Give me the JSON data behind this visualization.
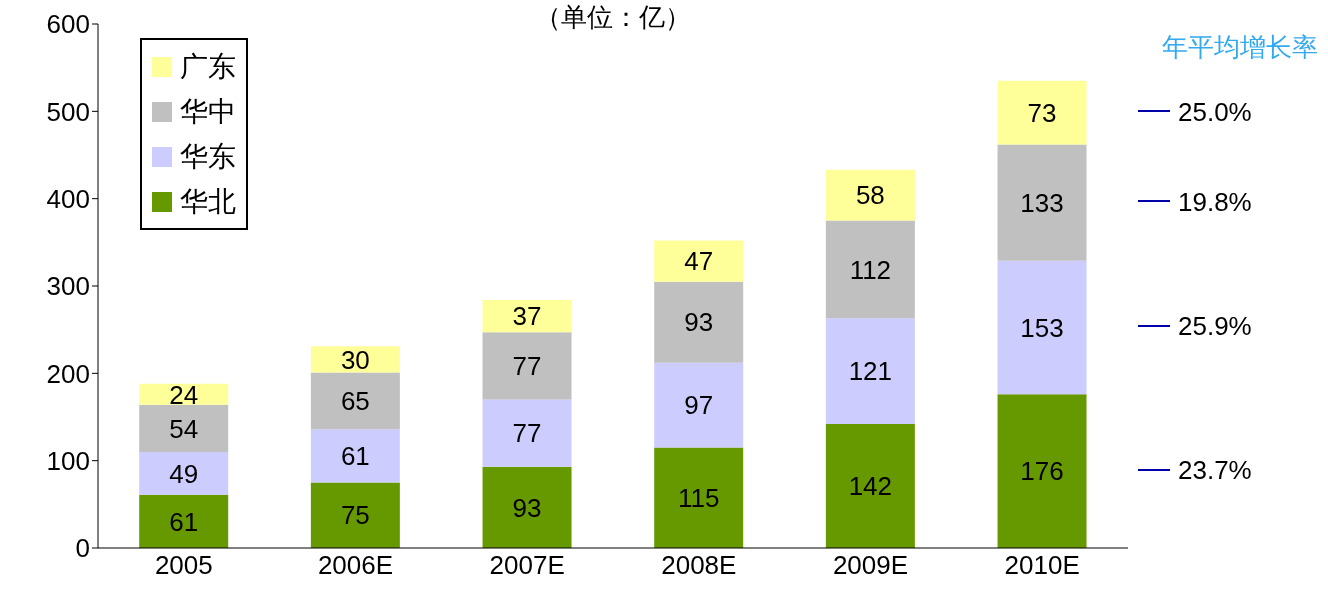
{
  "chart_data": {
    "type": "bar",
    "title": "（单位：亿）",
    "stacked": true,
    "categories": [
      "2005",
      "2006E",
      "2007E",
      "2008E",
      "2009E",
      "2010E"
    ],
    "series": [
      {
        "name": "华北",
        "color": "#669900",
        "values": [
          61,
          75,
          93,
          115,
          142,
          176
        ]
      },
      {
        "name": "华东",
        "color": "#ccccff",
        "values": [
          49,
          61,
          77,
          97,
          121,
          153
        ]
      },
      {
        "name": "华中",
        "color": "#c0c0c0",
        "values": [
          54,
          65,
          77,
          93,
          112,
          133
        ]
      },
      {
        "name": "广东",
        "color": "#ffff99",
        "values": [
          24,
          30,
          37,
          47,
          58,
          73
        ]
      }
    ],
    "ylim": [
      0,
      600
    ],
    "yticks": [
      0,
      100,
      200,
      300,
      400,
      500,
      600
    ],
    "legend": "top left",
    "data_labels": true,
    "annotations": [
      "年平均增长率",
      "25.0%",
      "19.8%",
      "25.9%",
      "23.7%"
    ]
  }
}
